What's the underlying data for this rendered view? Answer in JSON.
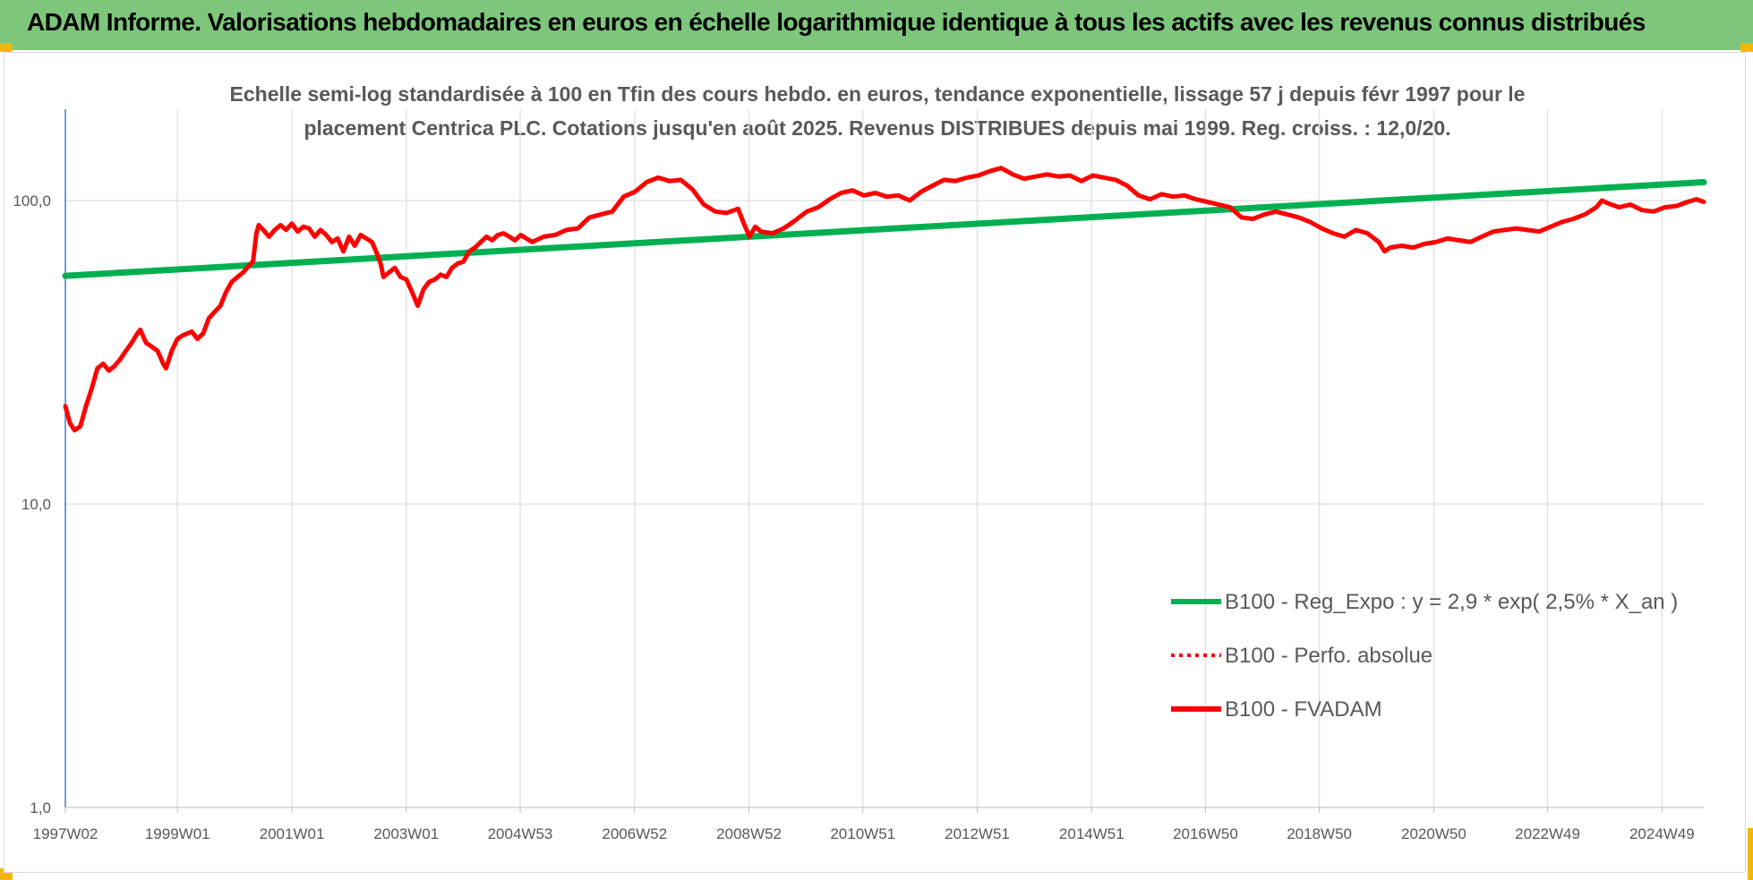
{
  "header": {
    "title": "ADAM Informe. Valorisations hebdomadaires en euros en échelle logarithmique identique à tous les actifs avec les revenus connus distribués"
  },
  "colors": {
    "banner": "#7dc67b",
    "regression": "#00b050",
    "fvadam": "#ff0000",
    "corner": "#f2b705"
  },
  "chart_data": {
    "type": "line",
    "title_lines": [
      "Echelle semi-log standardisée à 100 en Tfin des cours hebdo. en euros, tendance exponentielle, lissage 57 j depuis févr 1997 pour le",
      "placement Centrica PLC. Cotations jusqu'en août 2025. Revenus DISTRIBUES depuis mai 1999. Reg. croiss. : 12,0/20."
    ],
    "y_scale": "log",
    "ylim": [
      1,
      200
    ],
    "y_ticks": [
      {
        "value": 1,
        "label": "1,0"
      },
      {
        "value": 10,
        "label": "10,0"
      },
      {
        "value": 100,
        "label": "100,0"
      }
    ],
    "xlim": [
      1997.04,
      2025.68
    ],
    "x_ticks": [
      {
        "x": 1997.04,
        "label": "1997W02"
      },
      {
        "x": 1999.0,
        "label": "1999W01"
      },
      {
        "x": 2001.0,
        "label": "2001W01"
      },
      {
        "x": 2003.0,
        "label": "2003W01"
      },
      {
        "x": 2004.99,
        "label": "2004W53"
      },
      {
        "x": 2006.99,
        "label": "2006W52"
      },
      {
        "x": 2008.99,
        "label": "2008W52"
      },
      {
        "x": 2010.98,
        "label": "2010W51"
      },
      {
        "x": 2012.98,
        "label": "2012W51"
      },
      {
        "x": 2014.98,
        "label": "2014W51"
      },
      {
        "x": 2016.97,
        "label": "2016W50"
      },
      {
        "x": 2018.96,
        "label": "2018W50"
      },
      {
        "x": 2020.96,
        "label": "2020W50"
      },
      {
        "x": 2022.95,
        "label": "2022W49"
      },
      {
        "x": 2024.95,
        "label": "2024W49"
      }
    ],
    "grid": "vertical-and-horizontal",
    "legend_position": "bottom-right",
    "legend": [
      {
        "label": "B100 - Reg_Expo : y = 2,9 * exp( 2,5% *  X_an )",
        "style": "solid-green"
      },
      {
        "label": "B100 - Perfo. absolue",
        "style": "dotted-red"
      },
      {
        "label": "B100 - FVADAM",
        "style": "solid-red"
      }
    ],
    "series": [
      {
        "name": "B100 - Reg_Expo : y = 2,9 * exp( 2,5% *  X_an )",
        "color": "#00b050",
        "points": [
          [
            1997.04,
            56.5
          ],
          [
            2025.68,
            115.0
          ]
        ]
      },
      {
        "name": "B100 - FVADAM",
        "color": "#ff0000",
        "points": [
          [
            1997.04,
            21.0
          ],
          [
            1997.12,
            18.5
          ],
          [
            1997.2,
            17.5
          ],
          [
            1997.3,
            18.0
          ],
          [
            1997.4,
            21.0
          ],
          [
            1997.5,
            24.0
          ],
          [
            1997.6,
            28.0
          ],
          [
            1997.7,
            29.0
          ],
          [
            1997.8,
            27.5
          ],
          [
            1997.9,
            28.5
          ],
          [
            1998.0,
            30.0
          ],
          [
            1998.1,
            32.0
          ],
          [
            1998.2,
            34.0
          ],
          [
            1998.3,
            36.5
          ],
          [
            1998.35,
            37.5
          ],
          [
            1998.45,
            34.0
          ],
          [
            1998.55,
            33.0
          ],
          [
            1998.65,
            32.0
          ],
          [
            1998.75,
            29.0
          ],
          [
            1998.8,
            28.0
          ],
          [
            1998.9,
            32.0
          ],
          [
            1999.0,
            35.0
          ],
          [
            1999.1,
            36.0
          ],
          [
            1999.25,
            37.0
          ],
          [
            1999.35,
            35.0
          ],
          [
            1999.45,
            36.5
          ],
          [
            1999.55,
            41.0
          ],
          [
            1999.65,
            43.0
          ],
          [
            1999.75,
            45.0
          ],
          [
            1999.85,
            50.0
          ],
          [
            1999.95,
            54.0
          ],
          [
            2000.05,
            56.0
          ],
          [
            2000.15,
            58.0
          ],
          [
            2000.25,
            61.0
          ],
          [
            2000.32,
            63.0
          ],
          [
            2000.38,
            78.0
          ],
          [
            2000.42,
            83.0
          ],
          [
            2000.5,
            80.0
          ],
          [
            2000.6,
            76.0
          ],
          [
            2000.7,
            80.0
          ],
          [
            2000.8,
            83.0
          ],
          [
            2000.9,
            80.0
          ],
          [
            2001.0,
            84.0
          ],
          [
            2001.1,
            79.0
          ],
          [
            2001.2,
            82.0
          ],
          [
            2001.3,
            81.0
          ],
          [
            2001.4,
            76.0
          ],
          [
            2001.5,
            80.0
          ],
          [
            2001.6,
            77.0
          ],
          [
            2001.7,
            73.0
          ],
          [
            2001.8,
            75.0
          ],
          [
            2001.9,
            68.0
          ],
          [
            2002.0,
            76.0
          ],
          [
            2002.1,
            71.0
          ],
          [
            2002.2,
            77.0
          ],
          [
            2002.3,
            75.0
          ],
          [
            2002.4,
            73.0
          ],
          [
            2002.5,
            66.0
          ],
          [
            2002.55,
            62.0
          ],
          [
            2002.6,
            56.0
          ],
          [
            2002.7,
            58.0
          ],
          [
            2002.8,
            60.0
          ],
          [
            2002.9,
            56.0
          ],
          [
            2003.0,
            55.0
          ],
          [
            2003.1,
            50.0
          ],
          [
            2003.2,
            45.0
          ],
          [
            2003.3,
            51.0
          ],
          [
            2003.4,
            54.0
          ],
          [
            2003.5,
            55.0
          ],
          [
            2003.6,
            57.0
          ],
          [
            2003.7,
            56.0
          ],
          [
            2003.8,
            60.0
          ],
          [
            2003.9,
            62.0
          ],
          [
            2004.0,
            63.0
          ],
          [
            2004.1,
            68.0
          ],
          [
            2004.2,
            70.0
          ],
          [
            2004.3,
            73.0
          ],
          [
            2004.4,
            76.0
          ],
          [
            2004.5,
            74.0
          ],
          [
            2004.6,
            77.0
          ],
          [
            2004.7,
            78.0
          ],
          [
            2004.8,
            76.0
          ],
          [
            2004.9,
            74.0
          ],
          [
            2005.0,
            77.0
          ],
          [
            2005.2,
            73.0
          ],
          [
            2005.4,
            76.0
          ],
          [
            2005.6,
            77.0
          ],
          [
            2005.8,
            80.0
          ],
          [
            2006.0,
            81.0
          ],
          [
            2006.2,
            88.0
          ],
          [
            2006.4,
            90.0
          ],
          [
            2006.6,
            92.0
          ],
          [
            2006.8,
            103.0
          ],
          [
            2007.0,
            107.0
          ],
          [
            2007.2,
            115.0
          ],
          [
            2007.4,
            119.0
          ],
          [
            2007.6,
            116.0
          ],
          [
            2007.8,
            117.0
          ],
          [
            2008.0,
            109.0
          ],
          [
            2008.2,
            97.0
          ],
          [
            2008.4,
            92.0
          ],
          [
            2008.6,
            91.0
          ],
          [
            2008.8,
            94.0
          ],
          [
            2008.9,
            84.0
          ],
          [
            2009.0,
            76.0
          ],
          [
            2009.1,
            82.0
          ],
          [
            2009.2,
            79.0
          ],
          [
            2009.4,
            78.0
          ],
          [
            2009.6,
            81.0
          ],
          [
            2009.8,
            86.0
          ],
          [
            2010.0,
            92.0
          ],
          [
            2010.2,
            95.0
          ],
          [
            2010.4,
            101.0
          ],
          [
            2010.6,
            106.0
          ],
          [
            2010.8,
            108.0
          ],
          [
            2011.0,
            104.0
          ],
          [
            2011.2,
            106.0
          ],
          [
            2011.4,
            103.0
          ],
          [
            2011.6,
            104.0
          ],
          [
            2011.8,
            100.0
          ],
          [
            2012.0,
            107.0
          ],
          [
            2012.2,
            112.0
          ],
          [
            2012.4,
            117.0
          ],
          [
            2012.6,
            116.0
          ],
          [
            2012.8,
            119.0
          ],
          [
            2013.0,
            121.0
          ],
          [
            2013.2,
            125.0
          ],
          [
            2013.4,
            128.0
          ],
          [
            2013.6,
            122.0
          ],
          [
            2013.8,
            118.0
          ],
          [
            2014.0,
            120.0
          ],
          [
            2014.2,
            122.0
          ],
          [
            2014.4,
            120.0
          ],
          [
            2014.6,
            121.0
          ],
          [
            2014.8,
            116.0
          ],
          [
            2015.0,
            121.0
          ],
          [
            2015.2,
            119.0
          ],
          [
            2015.4,
            117.0
          ],
          [
            2015.6,
            112.0
          ],
          [
            2015.8,
            104.0
          ],
          [
            2016.0,
            101.0
          ],
          [
            2016.2,
            105.0
          ],
          [
            2016.4,
            103.0
          ],
          [
            2016.6,
            104.0
          ],
          [
            2016.8,
            101.0
          ],
          [
            2017.0,
            99.0
          ],
          [
            2017.2,
            97.0
          ],
          [
            2017.4,
            95.0
          ],
          [
            2017.6,
            88.0
          ],
          [
            2017.8,
            87.0
          ],
          [
            2018.0,
            90.0
          ],
          [
            2018.2,
            92.0
          ],
          [
            2018.4,
            90.0
          ],
          [
            2018.6,
            88.0
          ],
          [
            2018.8,
            85.0
          ],
          [
            2019.0,
            81.0
          ],
          [
            2019.2,
            78.0
          ],
          [
            2019.4,
            76.0
          ],
          [
            2019.6,
            80.0
          ],
          [
            2019.8,
            78.0
          ],
          [
            2020.0,
            73.0
          ],
          [
            2020.1,
            68.0
          ],
          [
            2020.2,
            70.0
          ],
          [
            2020.4,
            71.0
          ],
          [
            2020.6,
            70.0
          ],
          [
            2020.8,
            72.0
          ],
          [
            2021.0,
            73.0
          ],
          [
            2021.2,
            75.0
          ],
          [
            2021.4,
            74.0
          ],
          [
            2021.6,
            73.0
          ],
          [
            2021.8,
            76.0
          ],
          [
            2022.0,
            79.0
          ],
          [
            2022.2,
            80.0
          ],
          [
            2022.4,
            81.0
          ],
          [
            2022.6,
            80.0
          ],
          [
            2022.8,
            79.0
          ],
          [
            2023.0,
            82.0
          ],
          [
            2023.2,
            85.0
          ],
          [
            2023.4,
            87.0
          ],
          [
            2023.6,
            90.0
          ],
          [
            2023.8,
            95.0
          ],
          [
            2023.9,
            100.0
          ],
          [
            2024.0,
            98.0
          ],
          [
            2024.2,
            95.0
          ],
          [
            2024.4,
            97.0
          ],
          [
            2024.6,
            93.0
          ],
          [
            2024.8,
            92.0
          ],
          [
            2025.0,
            95.0
          ],
          [
            2025.2,
            96.0
          ],
          [
            2025.4,
            99.0
          ],
          [
            2025.55,
            101.0
          ],
          [
            2025.68,
            99.0
          ]
        ]
      }
    ]
  }
}
